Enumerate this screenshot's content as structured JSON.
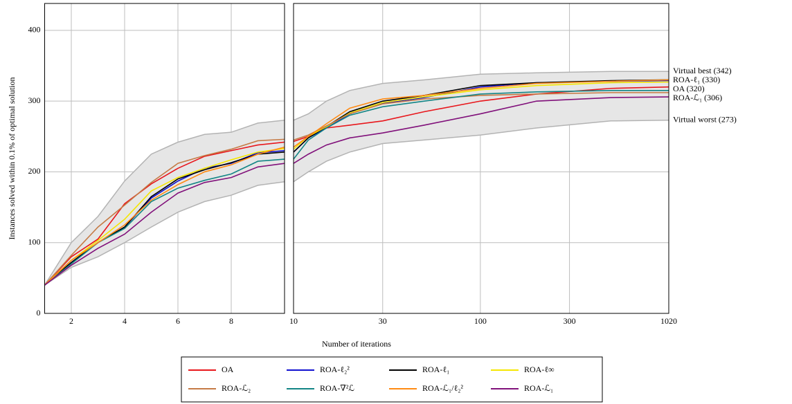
{
  "chart_data": [
    {
      "type": "line",
      "ylabel": "Instances solved within 0.1% of optimal solution",
      "xlabel": "Number of iterations",
      "x": [
        1,
        2,
        3,
        4,
        5,
        6,
        7,
        8,
        9,
        10
      ],
      "xlim": [
        1,
        10
      ],
      "xticks": [
        2,
        4,
        6,
        8
      ],
      "ylim": [
        0,
        438
      ],
      "yticks": [
        0,
        100,
        200,
        300,
        400
      ],
      "grid": true,
      "band": {
        "upper": [
          40,
          100,
          137,
          187,
          225,
          242,
          253,
          256,
          269,
          273
        ],
        "lower": [
          40,
          65,
          80,
          100,
          122,
          143,
          158,
          167,
          181,
          186
        ]
      },
      "series": [
        {
          "name": "OA",
          "color": "#e8161b",
          "values": [
            40,
            80,
            105,
            155,
            183,
            205,
            222,
            230,
            238,
            242
          ]
        },
        {
          "name": "ROA-ℓ₂²",
          "color": "#1010d0",
          "values": [
            40,
            72,
            100,
            122,
            163,
            187,
            205,
            212,
            227,
            230
          ]
        },
        {
          "name": "ROA-ℓ₁",
          "color": "#000000",
          "values": [
            40,
            72,
            100,
            122,
            165,
            190,
            203,
            213,
            225,
            228
          ]
        },
        {
          "name": "ROA-ℓ∞",
          "color": "#f5e600",
          "values": [
            40,
            75,
            103,
            133,
            173,
            192,
            205,
            217,
            228,
            233
          ]
        },
        {
          "name": "ROA-ℒ₂",
          "color": "#c57a45",
          "values": [
            40,
            82,
            122,
            153,
            185,
            212,
            223,
            232,
            244,
            246
          ]
        },
        {
          "name": "ROA-∇²ℒ",
          "color": "#128585",
          "values": [
            40,
            70,
            100,
            120,
            158,
            177,
            188,
            197,
            215,
            218
          ]
        },
        {
          "name": "ROA-ℒ₁/ℓ₂²",
          "color": "#ff8a12",
          "values": [
            40,
            75,
            100,
            125,
            160,
            182,
            200,
            210,
            225,
            235
          ]
        },
        {
          "name": "ROA-ℒ₁",
          "color": "#80107a",
          "values": [
            40,
            68,
            92,
            112,
            143,
            170,
            185,
            192,
            207,
            212
          ]
        }
      ]
    },
    {
      "type": "line",
      "xscale": "log",
      "x": [
        10,
        12,
        15,
        20,
        30,
        50,
        100,
        200,
        500,
        1020
      ],
      "xlim": [
        10,
        1020
      ],
      "xticks": [
        10,
        30,
        100,
        300,
        1020
      ],
      "ylim": [
        0,
        438
      ],
      "yticks": [
        0,
        100,
        200,
        300,
        400
      ],
      "grid": true,
      "band": {
        "upper": [
          273,
          282,
          300,
          315,
          325,
          330,
          338,
          340,
          342,
          342
        ],
        "lower": [
          186,
          200,
          215,
          228,
          240,
          245,
          252,
          262,
          272,
          273
        ]
      },
      "series": [
        {
          "values": [
            243,
            250,
            262,
            266,
            272,
            285,
            300,
            310,
            318,
            320
          ]
        },
        {
          "values": [
            228,
            248,
            262,
            282,
            297,
            305,
            320,
            326,
            328,
            329
          ]
        },
        {
          "values": [
            228,
            248,
            264,
            285,
            300,
            308,
            322,
            326,
            329,
            330
          ]
        },
        {
          "values": [
            232,
            250,
            264,
            283,
            298,
            306,
            316,
            322,
            326,
            327
          ]
        },
        {
          "values": [
            245,
            252,
            265,
            282,
            296,
            303,
            308,
            310,
            312,
            312
          ]
        },
        {
          "values": [
            218,
            245,
            262,
            280,
            292,
            300,
            310,
            313,
            315,
            315
          ]
        },
        {
          "values": [
            235,
            250,
            268,
            290,
            303,
            308,
            318,
            325,
            328,
            330
          ]
        },
        {
          "values": [
            212,
            225,
            238,
            248,
            255,
            266,
            282,
            300,
            305,
            306
          ]
        }
      ],
      "annotations": [
        {
          "label": "Virtual best (342)",
          "value": 342
        },
        {
          "label": "ROA-ℓ₁ (330)",
          "value": 330
        },
        {
          "label": "OA (320)",
          "value": 320
        },
        {
          "label": "ROA-ℒ₁ (306)",
          "value": 306
        },
        {
          "label": "Virtual worst (273)",
          "value": 273
        }
      ]
    }
  ]
}
